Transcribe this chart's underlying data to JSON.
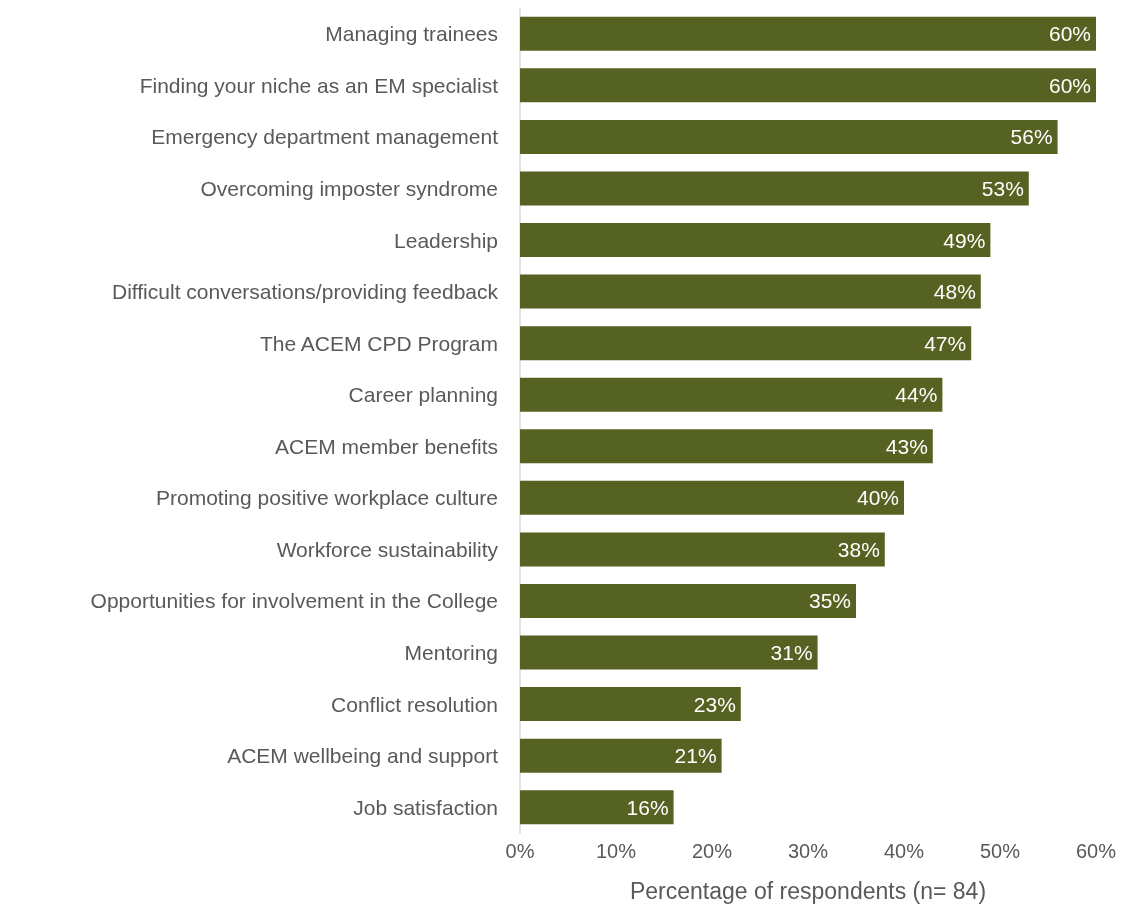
{
  "chart_data": {
    "type": "bar",
    "orientation": "horizontal",
    "xlabel": "Percentage of respondents (n= 84)",
    "categories": [
      "Managing trainees",
      "Finding your niche as an EM specialist",
      "Emergency department management",
      "Overcoming imposter syndrome",
      "Leadership",
      "Difficult conversations/providing feedback",
      "The ACEM CPD Program",
      "Career planning",
      "ACEM member benefits",
      "Promoting positive workplace culture",
      "Workforce sustainability",
      "Opportunities for involvement in the College",
      "Mentoring",
      "Conflict resolution",
      "ACEM wellbeing and support",
      "Job satisfaction"
    ],
    "values": [
      60,
      60,
      56,
      53,
      49,
      48,
      47,
      44,
      43,
      40,
      38,
      35,
      31,
      23,
      21,
      16
    ],
    "value_labels": [
      "60%",
      "60%",
      "56%",
      "53%",
      "49%",
      "48%",
      "47%",
      "44%",
      "43%",
      "40%",
      "38%",
      "35%",
      "31%",
      "23%",
      "21%",
      "16%"
    ],
    "color": "#566221",
    "xlim": [
      0,
      60
    ],
    "xticks": [
      {
        "value": 0,
        "label": "0%"
      },
      {
        "value": 10,
        "label": "10%"
      },
      {
        "value": 20,
        "label": "20%"
      },
      {
        "value": 30,
        "label": "30%"
      },
      {
        "value": 40,
        "label": "40%"
      },
      {
        "value": 50,
        "label": "50%"
      },
      {
        "value": 60,
        "label": "60%"
      }
    ],
    "grid": false
  }
}
